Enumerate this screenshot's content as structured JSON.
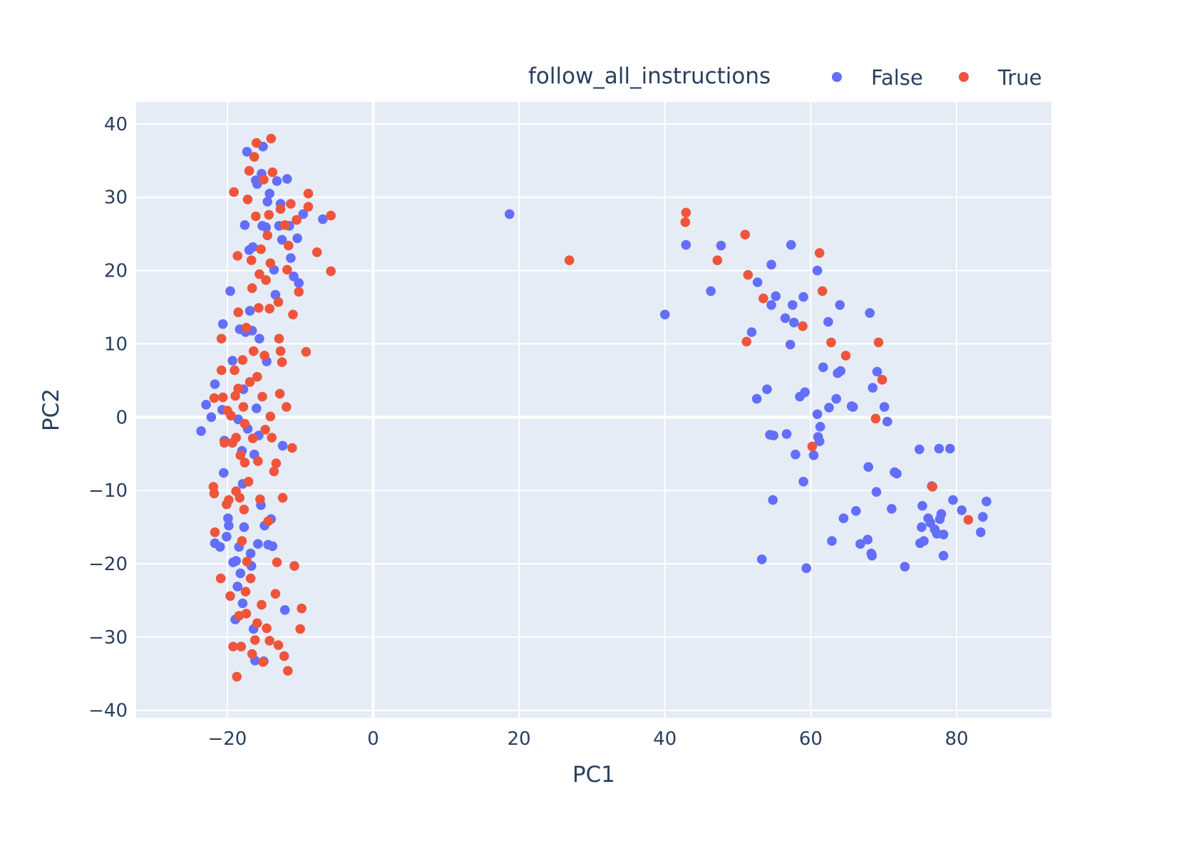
{
  "chart_data": {
    "type": "scatter",
    "xlabel": "PC1",
    "ylabel": "PC2",
    "xlim": [
      -32.5,
      93
    ],
    "ylim": [
      -41,
      43
    ],
    "x_ticks": [
      -20,
      0,
      20,
      40,
      60,
      80
    ],
    "y_ticks": [
      -40,
      -30,
      -20,
      -10,
      0,
      10,
      20,
      30,
      40
    ],
    "x_tick_labels": [
      "−20",
      "0",
      "20",
      "40",
      "60",
      "80"
    ],
    "y_tick_labels": [
      "−40",
      "−30",
      "−20",
      "−10",
      "0",
      "10",
      "20",
      "30",
      "40"
    ],
    "grid": true,
    "plot_background": "#e5ecf6",
    "grid_color": "#ffffff",
    "legend": {
      "title": "follow_all_instructions",
      "placement": "top-right",
      "orientation": "horizontal"
    },
    "series": [
      {
        "name": "False",
        "color": "#636efa",
        "points": [
          [
            18.7,
            27.7
          ],
          [
            40.0,
            14.0
          ],
          [
            42.9,
            23.5
          ],
          [
            46.3,
            17.2
          ],
          [
            47.7,
            23.4
          ],
          [
            51.9,
            11.6
          ],
          [
            52.7,
            18.4
          ],
          [
            52.6,
            2.5
          ],
          [
            53.3,
            -19.4
          ],
          [
            54.0,
            3.8
          ],
          [
            54.4,
            -2.4
          ],
          [
            54.6,
            15.3
          ],
          [
            54.6,
            20.8
          ],
          [
            54.8,
            -11.3
          ],
          [
            54.9,
            -2.5
          ],
          [
            55.2,
            16.5
          ],
          [
            56.5,
            13.5
          ],
          [
            56.7,
            -2.3
          ],
          [
            57.2,
            9.9
          ],
          [
            57.3,
            23.5
          ],
          [
            57.5,
            15.3
          ],
          [
            57.7,
            12.9
          ],
          [
            57.9,
            -5.1
          ],
          [
            58.5,
            2.8
          ],
          [
            59.0,
            16.4
          ],
          [
            59.0,
            -8.8
          ],
          [
            59.2,
            3.4
          ],
          [
            59.4,
            -20.6
          ],
          [
            60.4,
            -5.2
          ],
          [
            60.9,
            0.4
          ],
          [
            60.9,
            20.0
          ],
          [
            61.0,
            -2.7
          ],
          [
            61.2,
            -3.3
          ],
          [
            61.3,
            -1.3
          ],
          [
            61.7,
            6.8
          ],
          [
            62.4,
            13.0
          ],
          [
            62.5,
            1.3
          ],
          [
            62.9,
            -16.9
          ],
          [
            63.5,
            2.5
          ],
          [
            63.7,
            6.0
          ],
          [
            64.0,
            15.3
          ],
          [
            64.1,
            6.3
          ],
          [
            64.5,
            -13.8
          ],
          [
            65.6,
            1.5
          ],
          [
            65.8,
            1.4
          ],
          [
            66.2,
            -12.8
          ],
          [
            66.8,
            -17.3
          ],
          [
            67.8,
            -16.7
          ],
          [
            67.9,
            -6.8
          ],
          [
            68.1,
            14.2
          ],
          [
            68.3,
            -18.6
          ],
          [
            68.4,
            -18.9
          ],
          [
            68.5,
            4.0
          ],
          [
            69.0,
            -10.2
          ],
          [
            69.1,
            6.2
          ],
          [
            70.1,
            1.4
          ],
          [
            70.5,
            -0.6
          ],
          [
            71.1,
            -12.5
          ],
          [
            71.5,
            -7.5
          ],
          [
            71.8,
            -7.7
          ],
          [
            72.9,
            -20.4
          ],
          [
            74.9,
            -4.4
          ],
          [
            75.0,
            -17.2
          ],
          [
            75.2,
            -15.0
          ],
          [
            75.3,
            -12.1
          ],
          [
            75.5,
            -16.9
          ],
          [
            76.1,
            -13.8
          ],
          [
            76.4,
            -14.4
          ],
          [
            76.6,
            -9.4
          ],
          [
            77.0,
            -15.3
          ],
          [
            77.3,
            -15.9
          ],
          [
            77.6,
            -4.3
          ],
          [
            77.7,
            -13.9
          ],
          [
            77.9,
            -13.2
          ],
          [
            78.2,
            -16.0
          ],
          [
            78.2,
            -18.9
          ],
          [
            79.1,
            -4.3
          ],
          [
            79.5,
            -11.3
          ],
          [
            80.7,
            -12.7
          ],
          [
            83.3,
            -15.7
          ],
          [
            83.6,
            -13.6
          ],
          [
            84.1,
            -11.5
          ],
          [
            -23.6,
            -1.9
          ],
          [
            -22.9,
            1.7
          ],
          [
            -22.2,
            0.0
          ],
          [
            -21.7,
            4.5
          ],
          [
            -21.7,
            -17.2
          ],
          [
            -21.0,
            -17.7
          ],
          [
            -20.7,
            1.0
          ],
          [
            -20.6,
            12.7
          ],
          [
            -20.5,
            -7.6
          ],
          [
            -20.4,
            -3.2
          ],
          [
            -20.1,
            -16.3
          ],
          [
            -19.9,
            -13.8
          ],
          [
            -19.8,
            -14.8
          ],
          [
            -19.6,
            17.2
          ],
          [
            -19.3,
            7.7
          ],
          [
            -19.2,
            -19.8
          ],
          [
            -18.9,
            -27.6
          ],
          [
            -18.8,
            -19.6
          ],
          [
            -18.6,
            -23.1
          ],
          [
            -18.5,
            -0.3
          ],
          [
            -18.4,
            -17.7
          ],
          [
            -18.3,
            12.0
          ],
          [
            -18.2,
            -21.3
          ],
          [
            -18.0,
            -4.6
          ],
          [
            -17.9,
            -9.1
          ],
          [
            -17.9,
            -25.4
          ],
          [
            -17.8,
            3.8
          ],
          [
            -17.7,
            -15.0
          ],
          [
            -17.6,
            26.2
          ],
          [
            -17.5,
            11.6
          ],
          [
            -17.3,
            36.2
          ],
          [
            -17.2,
            -1.6
          ],
          [
            -17.0,
            22.8
          ],
          [
            -16.9,
            14.5
          ],
          [
            -16.8,
            -18.6
          ],
          [
            -16.7,
            -20.3
          ],
          [
            -16.6,
            11.8
          ],
          [
            -16.5,
            23.2
          ],
          [
            -16.4,
            -28.9
          ],
          [
            -16.3,
            -5.1
          ],
          [
            -16.2,
            -33.2
          ],
          [
            -16.1,
            32.3
          ],
          [
            -16.0,
            1.2
          ],
          [
            -15.9,
            31.8
          ],
          [
            -15.8,
            -17.3
          ],
          [
            -15.7,
            -2.5
          ],
          [
            -15.6,
            10.7
          ],
          [
            -15.4,
            -12.0
          ],
          [
            -15.3,
            33.2
          ],
          [
            -15.2,
            26.1
          ],
          [
            -15.1,
            36.9
          ],
          [
            -15.0,
            -33.3
          ],
          [
            -14.9,
            -14.8
          ],
          [
            -14.7,
            25.9
          ],
          [
            -14.6,
            7.6
          ],
          [
            -14.5,
            29.4
          ],
          [
            -14.4,
            -17.4
          ],
          [
            -14.2,
            30.5
          ],
          [
            -14.0,
            -13.9
          ],
          [
            -13.8,
            -17.6
          ],
          [
            -13.6,
            20.1
          ],
          [
            -13.4,
            16.7
          ],
          [
            -13.2,
            32.2
          ],
          [
            -12.9,
            26.1
          ],
          [
            -12.7,
            29.1
          ],
          [
            -12.5,
            24.2
          ],
          [
            -12.4,
            -3.9
          ],
          [
            -12.1,
            -26.3
          ],
          [
            -11.8,
            32.5
          ],
          [
            -11.5,
            26.1
          ],
          [
            -11.3,
            21.7
          ],
          [
            -10.9,
            19.2
          ],
          [
            -10.4,
            24.4
          ],
          [
            -10.2,
            18.3
          ],
          [
            -9.6,
            27.7
          ],
          [
            -6.9,
            27.0
          ]
        ]
      },
      {
        "name": "True",
        "color": "#ef553b",
        "points": [
          [
            26.9,
            21.4
          ],
          [
            42.9,
            27.9
          ],
          [
            42.8,
            26.6
          ],
          [
            47.2,
            21.4
          ],
          [
            51.0,
            24.9
          ],
          [
            51.2,
            10.3
          ],
          [
            51.4,
            19.4
          ],
          [
            53.5,
            16.2
          ],
          [
            58.9,
            12.4
          ],
          [
            60.2,
            -4.0
          ],
          [
            61.2,
            22.4
          ],
          [
            61.6,
            17.2
          ],
          [
            62.8,
            10.2
          ],
          [
            64.8,
            8.4
          ],
          [
            68.9,
            -0.2
          ],
          [
            69.3,
            10.2
          ],
          [
            69.8,
            5.1
          ],
          [
            76.7,
            -9.5
          ],
          [
            81.6,
            -14.0
          ],
          [
            -21.9,
            -9.5
          ],
          [
            -21.8,
            -10.4
          ],
          [
            -21.8,
            2.6
          ],
          [
            -21.7,
            -15.7
          ],
          [
            -20.9,
            -22.0
          ],
          [
            -20.8,
            10.7
          ],
          [
            -20.8,
            6.4
          ],
          [
            -20.6,
            2.7
          ],
          [
            -20.4,
            -3.5
          ],
          [
            -20.1,
            -11.9
          ],
          [
            -20.0,
            0.9
          ],
          [
            -19.8,
            -11.3
          ],
          [
            -19.6,
            -24.4
          ],
          [
            -19.5,
            0.2
          ],
          [
            -19.3,
            -3.5
          ],
          [
            -19.2,
            -31.3
          ],
          [
            -19.1,
            30.7
          ],
          [
            -19.0,
            6.4
          ],
          [
            -18.9,
            2.9
          ],
          [
            -18.8,
            -2.8
          ],
          [
            -18.8,
            -10.1
          ],
          [
            -18.7,
            -35.4
          ],
          [
            -18.6,
            22.0
          ],
          [
            -18.5,
            14.3
          ],
          [
            -18.4,
            -27.1
          ],
          [
            -18.3,
            -11.0
          ],
          [
            -18.2,
            -5.2
          ],
          [
            -18.1,
            -31.3
          ],
          [
            -18.0,
            -16.9
          ],
          [
            -17.9,
            7.8
          ],
          [
            -17.8,
            1.4
          ],
          [
            -17.7,
            -12.6
          ],
          [
            -17.6,
            -6.2
          ],
          [
            -17.5,
            -23.8
          ],
          [
            -17.4,
            12.2
          ],
          [
            -17.3,
            -19.7
          ],
          [
            -17.2,
            29.7
          ],
          [
            -17.1,
            -8.8
          ],
          [
            -17.0,
            33.6
          ],
          [
            -16.9,
            4.8
          ],
          [
            -16.8,
            -22.0
          ],
          [
            -16.7,
            21.4
          ],
          [
            -16.6,
            17.6
          ],
          [
            -16.5,
            -2.9
          ],
          [
            -16.4,
            9.0
          ],
          [
            -16.3,
            35.5
          ],
          [
            -16.2,
            -30.4
          ],
          [
            -16.1,
            27.4
          ],
          [
            -16.0,
            37.4
          ],
          [
            -15.9,
            5.5
          ],
          [
            -15.8,
            -6.0
          ],
          [
            -15.7,
            14.9
          ],
          [
            -15.6,
            19.5
          ],
          [
            -15.5,
            -11.2
          ],
          [
            -15.4,
            22.9
          ],
          [
            -15.3,
            -25.6
          ],
          [
            -15.2,
            2.8
          ],
          [
            -15.1,
            -33.4
          ],
          [
            -15.0,
            32.4
          ],
          [
            -14.9,
            8.4
          ],
          [
            -14.8,
            -1.7
          ],
          [
            -14.7,
            18.7
          ],
          [
            -14.6,
            -28.8
          ],
          [
            -14.5,
            24.8
          ],
          [
            -14.4,
            -14.2
          ],
          [
            -14.3,
            27.6
          ],
          [
            -14.2,
            14.8
          ],
          [
            -14.1,
            21.0
          ],
          [
            -14.0,
            38.0
          ],
          [
            -13.9,
            -2.8
          ],
          [
            -13.8,
            33.4
          ],
          [
            -13.6,
            -7.4
          ],
          [
            -13.4,
            -24.1
          ],
          [
            -13.3,
            -6.3
          ],
          [
            -13.2,
            -19.8
          ],
          [
            -13.0,
            15.7
          ],
          [
            -12.9,
            10.7
          ],
          [
            -12.8,
            3.2
          ],
          [
            -12.7,
            28.4
          ],
          [
            -12.5,
            7.5
          ],
          [
            -12.4,
            -11.0
          ],
          [
            -12.2,
            -32.6
          ],
          [
            -12.1,
            26.2
          ],
          [
            -11.8,
            20.1
          ],
          [
            -11.7,
            -34.6
          ],
          [
            -11.6,
            23.4
          ],
          [
            -11.3,
            29.1
          ],
          [
            -11.1,
            -4.2
          ],
          [
            -11.0,
            14.0
          ],
          [
            -10.8,
            -20.3
          ],
          [
            -10.5,
            26.9
          ],
          [
            -10.2,
            17.1
          ],
          [
            -10.0,
            -28.9
          ],
          [
            -9.8,
            -26.1
          ],
          [
            -9.2,
            8.9
          ],
          [
            -8.9,
            30.5
          ],
          [
            -8.9,
            28.7
          ],
          [
            -7.7,
            22.5
          ],
          [
            -5.8,
            27.5
          ],
          [
            -5.8,
            19.9
          ],
          [
            -11.9,
            1.4
          ],
          [
            -12.7,
            9.0
          ],
          [
            -13.0,
            -31.1
          ],
          [
            -14.1,
            0.1
          ],
          [
            -17.6,
            -0.9
          ],
          [
            -18.5,
            3.9
          ],
          [
            -16.6,
            -32.3
          ],
          [
            -15.9,
            -28.1
          ],
          [
            -17.4,
            -26.8
          ],
          [
            -14.2,
            -30.5
          ]
        ]
      }
    ]
  }
}
